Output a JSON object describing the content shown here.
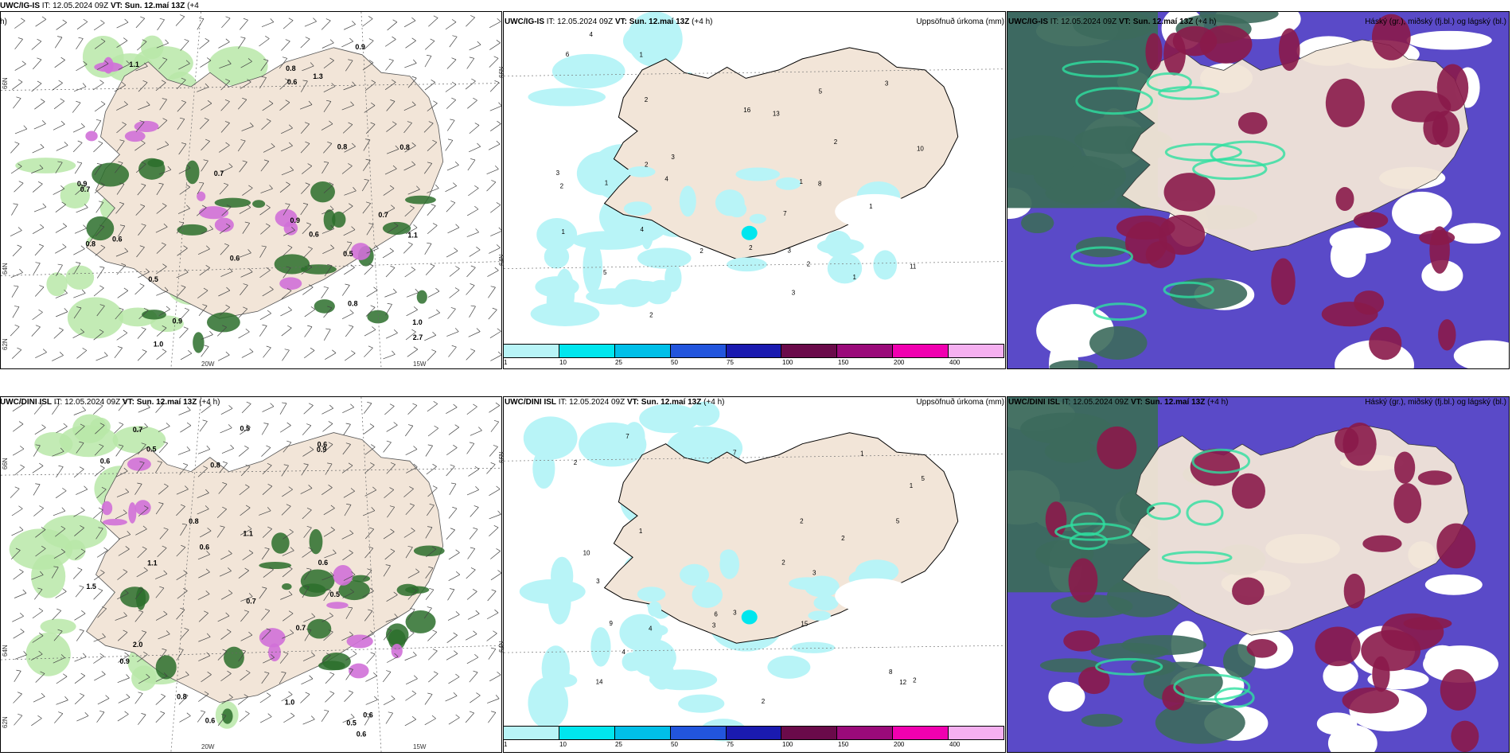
{
  "rows": [
    {
      "left_header_model": "UWC/IG-IS",
      "left_header_rest_it": " IT: 12.05.2024 09Z ",
      "left_header_vt": "VT: Sun. 12.maí 13Z",
      "left_header_tail": " (+4",
      "left_header_wrap": "h)",
      "mid_header_model": "UWC/IG-IS",
      "mid_header_it": " IT: 12.05.2024 09Z ",
      "mid_header_vt": "VT: Sun. 12.maí 13Z",
      "mid_header_tail": " (+4 h)",
      "mid_header_right": "Uppsöfnuð úrkoma (mm)",
      "right_header_model": "UWC/IG-IS",
      "right_header_it": " IT: 12.05.2024 09Z ",
      "right_header_vt": "VT: Sun. 12.maí 13Z",
      "right_header_tail": " (+4 h)",
      "right_header_right": "Háský (gr.), miðský (fj.bl.) og lágský (bl.)"
    },
    {
      "left_header_model": "UWC/DINI ISL",
      "left_header_rest_it": " IT: 12.05.2024 09Z ",
      "left_header_vt": "VT: Sun. 12.maí 13Z",
      "left_header_tail": " (+4 h)",
      "left_header_wrap": "",
      "mid_header_model": "UWC/DINI ISL",
      "mid_header_it": " IT: 12.05.2024 09Z ",
      "mid_header_vt": "VT: Sun. 12.maí 13Z",
      "mid_header_tail": " (+4 h)",
      "mid_header_right": "Uppsöfnuð úrkoma (mm)",
      "right_header_model": "UWC/DINI ISL",
      "right_header_it": " IT: 12.05.2024 09Z ",
      "right_header_vt": "VT: Sun. 12.maí 13Z",
      "right_header_tail": " (+4 h)",
      "right_header_right": "Háský (gr.), miðský (fj.bl.) og lágský (bl.)"
    }
  ],
  "grid_labels": {
    "lat_66": "66N",
    "lat_64": "64N",
    "lat_62": "62N",
    "lon_20": "20W",
    "lon_15": "15W"
  },
  "colorbar": {
    "colors": [
      "#b8f4f7",
      "#00e6ee",
      "#00bfe8",
      "#2255dd",
      "#1a1ab0",
      "#6a0a4a",
      "#9a0a7a",
      "#f000b0",
      "#f5b0f0"
    ],
    "ticks": [
      "1",
      "10",
      "25",
      "50",
      "75",
      "100",
      "150",
      "200",
      "400"
    ]
  },
  "colors": {
    "land": "#f2e5d8",
    "precip_light": "#b8f4f7",
    "wind_green_light": "#b9e8a8",
    "wind_green_dark": "#2c6e2c",
    "wind_magenta": "#d070d8",
    "cloud_high": "#3c6a5c",
    "cloud_mid": "#8a1a4a",
    "cloud_low": "#5a4ac8"
  },
  "precip_labels_top": [
    "2",
    "3",
    "3",
    "2",
    "2",
    "3",
    "1",
    "1",
    "2",
    "1",
    "1",
    "4",
    "2",
    "1",
    "7",
    "2",
    "4",
    "6",
    "5",
    "11",
    "3",
    "8",
    "5",
    "16",
    "13",
    "10",
    "4",
    "2",
    "1",
    "2",
    "3"
  ],
  "precip_labels_bottom": [
    "2",
    "3",
    "1",
    "2",
    "1",
    "3",
    "4",
    "2",
    "3",
    "5",
    "6",
    "7",
    "3",
    "4",
    "7",
    "10",
    "9",
    "8",
    "14",
    "15",
    "12",
    "5",
    "2",
    "2",
    "1",
    "2"
  ],
  "wind_labels_top": [
    "0.6",
    "1.0",
    "0.8",
    "0.9",
    "0.5",
    "0.6",
    "0.6",
    "0.8",
    "1.1",
    "0.8",
    "0.9",
    "0.7",
    "0.8",
    "1.0",
    "0.9",
    "0.6",
    "0.5",
    "0.8",
    "0.7",
    "2.7",
    "1.3",
    "0.9",
    "1.1",
    "0.7"
  ],
  "wind_labels_bottom": [
    "0.6",
    "0.5",
    "0.6",
    "0.8",
    "0.6",
    "0.5",
    "0.8",
    "1.1",
    "0.6",
    "0.9",
    "1.0",
    "0.7",
    "1.5",
    "0.5",
    "0.7",
    "0.6",
    "0.6",
    "2.0",
    "1.1",
    "0.8",
    "0.6",
    "0.9",
    "0.7",
    "0.5"
  ]
}
